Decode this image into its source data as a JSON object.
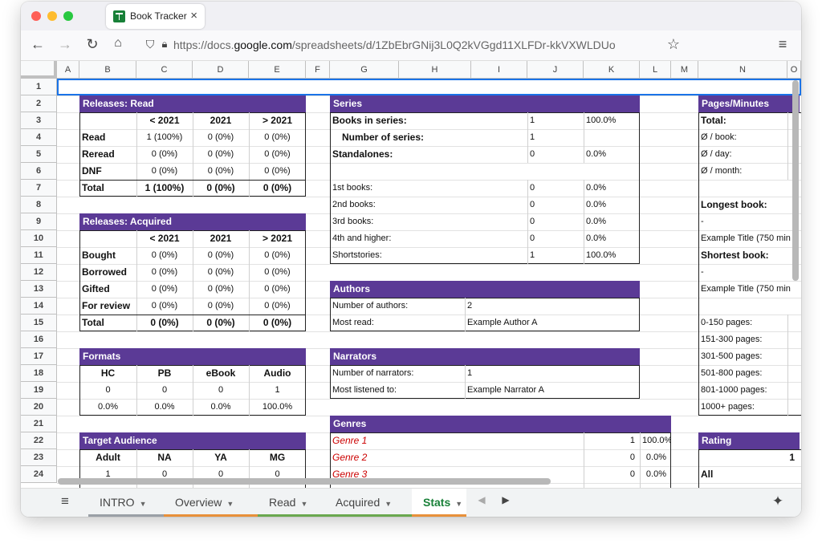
{
  "browser": {
    "tab_title": "Book Tracker",
    "url_prefix": "https://docs.",
    "url_domain": "google.com",
    "url_rest": "/spreadsheets/d/1ZbEbrGNij3L0Q2kVGgd11XLFDr-kkVXWLDUo"
  },
  "columns": [
    "A",
    "B",
    "C",
    "D",
    "E",
    "F",
    "G",
    "H",
    "I",
    "J",
    "K",
    "L",
    "M",
    "N",
    "O"
  ],
  "rows": [
    "1",
    "2",
    "3",
    "4",
    "5",
    "6",
    "7",
    "8",
    "9",
    "10",
    "11",
    "12",
    "13",
    "14",
    "15",
    "16",
    "17",
    "18",
    "19",
    "20",
    "21",
    "22",
    "23",
    "24"
  ],
  "releases_read": {
    "title": "Releases: Read",
    "headers": [
      "< 2021",
      "2021",
      "> 2021"
    ],
    "rows": [
      [
        "Read",
        "1 (100%)",
        "0 (0%)",
        "0 (0%)"
      ],
      [
        "Reread",
        "0 (0%)",
        "0 (0%)",
        "0 (0%)"
      ],
      [
        "DNF",
        "0 (0%)",
        "0 (0%)",
        "0 (0%)"
      ],
      [
        "Total",
        "1 (100%)",
        "0 (0%)",
        "0 (0%)"
      ]
    ]
  },
  "releases_acquired": {
    "title": "Releases: Acquired",
    "headers": [
      "< 2021",
      "2021",
      "> 2021"
    ],
    "rows": [
      [
        "Bought",
        "0 (0%)",
        "0 (0%)",
        "0 (0%)"
      ],
      [
        "Borrowed",
        "0 (0%)",
        "0 (0%)",
        "0 (0%)"
      ],
      [
        "Gifted",
        "0 (0%)",
        "0 (0%)",
        "0 (0%)"
      ],
      [
        "For review",
        "0 (0%)",
        "0 (0%)",
        "0 (0%)"
      ],
      [
        "Total",
        "0 (0%)",
        "0 (0%)",
        "0 (0%)"
      ]
    ]
  },
  "formats": {
    "title": "Formats",
    "headers": [
      "HC",
      "PB",
      "eBook",
      "Audio"
    ],
    "counts": [
      "0",
      "0",
      "0",
      "1"
    ],
    "pcts": [
      "0.0%",
      "0.0%",
      "0.0%",
      "100.0%"
    ]
  },
  "target_audience": {
    "title": "Target Audience",
    "headers": [
      "Adult",
      "NA",
      "YA",
      "MG"
    ],
    "counts": [
      "1",
      "0",
      "0",
      "0"
    ]
  },
  "series": {
    "title": "Series",
    "top": [
      [
        "Books in series:",
        "1",
        "100.0%"
      ],
      [
        "Number of series:",
        "1",
        ""
      ],
      [
        "Standalones:",
        "0",
        "0.0%"
      ]
    ],
    "rows": [
      [
        "1st books:",
        "0",
        "0.0%"
      ],
      [
        "2nd books:",
        "0",
        "0.0%"
      ],
      [
        "3rd books:",
        "0",
        "0.0%"
      ],
      [
        "4th and higher:",
        "0",
        "0.0%"
      ],
      [
        "Shortstories:",
        "1",
        "100.0%"
      ]
    ]
  },
  "authors": {
    "title": "Authors",
    "rows": [
      [
        "Number of authors:",
        "2"
      ],
      [
        "Most read:",
        "Example Author A"
      ]
    ]
  },
  "narrators": {
    "title": "Narrators",
    "rows": [
      [
        "Number of narrators:",
        "1"
      ],
      [
        "Most listened to:",
        "Example Narrator A"
      ]
    ]
  },
  "genres": {
    "title": "Genres",
    "rows": [
      [
        "Genre 1",
        "1",
        "100.0%"
      ],
      [
        "Genre 2",
        "0",
        "0.0%"
      ],
      [
        "Genre 3",
        "0",
        "0.0%"
      ]
    ]
  },
  "pages": {
    "title": "Pages/Minutes",
    "total": "Total:",
    "per_book": "Ø / book:",
    "per_day": "Ø / day:",
    "per_month": "Ø / month:",
    "longest": "Longest book:",
    "longest_dash": "-",
    "longest_title": "Example Title (750 min",
    "shortest": "Shortest book:",
    "shortest_dash": "-",
    "shortest_title": "Example Title (750 min",
    "ranges": [
      "0-150 pages:",
      "151-300 pages:",
      "301-500 pages:",
      "501-800 pages:",
      "801-1000 pages:",
      "1000+ pages:"
    ]
  },
  "rating": {
    "title": "Rating",
    "value": "1",
    "all": "All"
  },
  "sheet_tabs": [
    "INTRO",
    "Overview",
    "Read",
    "Acquired",
    "Stats"
  ],
  "tab_colors": [
    "#9aa0a6",
    "#e8903a",
    "#6aa84f",
    "#6aa84f",
    "#e8903a"
  ],
  "active_tab": "Stats"
}
